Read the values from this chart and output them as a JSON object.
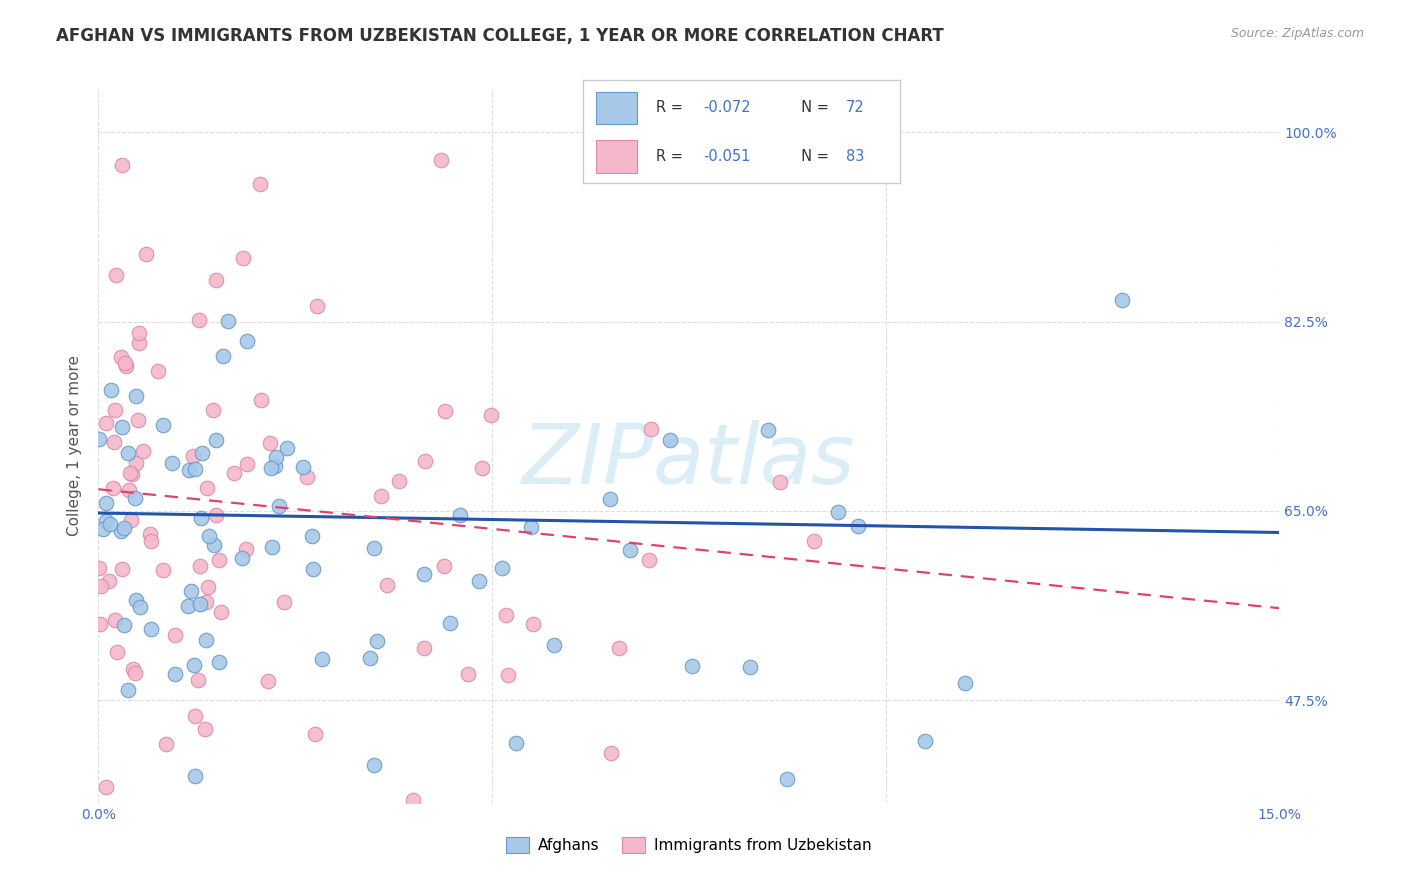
{
  "title": "AFGHAN VS IMMIGRANTS FROM UZBEKISTAN COLLEGE, 1 YEAR OR MORE CORRELATION CHART",
  "source": "Source: ZipAtlas.com",
  "ylabel": "College, 1 year or more",
  "xlim": [
    0.0,
    0.15
  ],
  "ylim": [
    0.38,
    1.04
  ],
  "afghans_color": "#a8c8e8",
  "afghans_edge": "#6699cc",
  "uzbek_color": "#f5b8ca",
  "uzbek_edge": "#dd88aa",
  "trend_afghan_color": "#2255aa",
  "trend_uzbek_color": "#dd4466",
  "watermark": "ZIPatlas",
  "watermark_color": "#cce8f4",
  "grid_color": "#dddddd",
  "ytick_color": "#4472c4",
  "xtick_color": "#4472c4",
  "title_color": "#333333",
  "source_color": "#999999",
  "ylabel_color": "#555555",
  "legend_r_color": "#4472c4",
  "legend_n_color": "#4472c4",
  "legend_label_color": "#333333",
  "legend_border_color": "#cccccc",
  "bottom_legend_labels": [
    "Afghans",
    "Immigrants from Uzbekistan"
  ]
}
